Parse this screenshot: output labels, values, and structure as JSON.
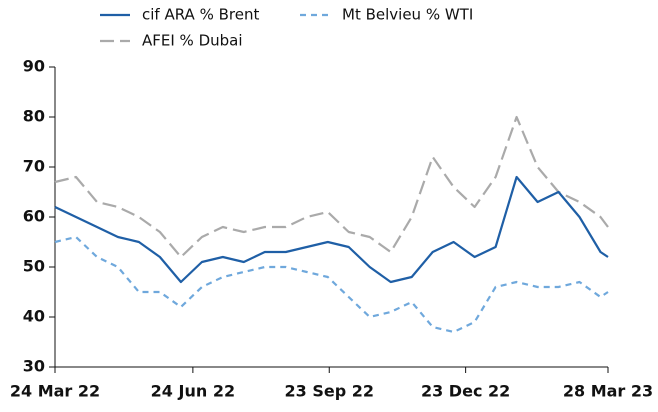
{
  "chart_data": {
    "type": "line",
    "x": [
      "2022-03-24",
      "2022-04-07",
      "2022-04-21",
      "2022-05-05",
      "2022-05-19",
      "2022-06-02",
      "2022-06-16",
      "2022-06-30",
      "2022-07-14",
      "2022-07-28",
      "2022-08-11",
      "2022-08-25",
      "2022-09-08",
      "2022-09-22",
      "2022-10-06",
      "2022-10-20",
      "2022-11-03",
      "2022-11-17",
      "2022-12-01",
      "2022-12-15",
      "2022-12-29",
      "2023-01-12",
      "2023-01-26",
      "2023-02-09",
      "2023-02-23",
      "2023-03-09",
      "2023-03-23",
      "2023-03-28"
    ],
    "series": [
      {
        "name": "cif ARA % Brent",
        "color": "#1f5fa6",
        "linestyle": "solid",
        "values": [
          62,
          60,
          58,
          56,
          55,
          52,
          47,
          51,
          52,
          51,
          53,
          53,
          54,
          55,
          54,
          50,
          47,
          48,
          53,
          55,
          52,
          54,
          68,
          63,
          65,
          60,
          53,
          52
        ]
      },
      {
        "name": "Mt Belvieu % WTI",
        "color": "#6fa8dc",
        "linestyle": "dashed",
        "values": [
          55,
          56,
          52,
          50,
          45,
          45,
          42,
          46,
          48,
          49,
          50,
          50,
          49,
          48,
          44,
          40,
          41,
          43,
          38,
          37,
          39,
          46,
          47,
          46,
          46,
          47,
          44,
          45
        ]
      },
      {
        "name": "AFEI % Dubai",
        "color": "#aaaaaa",
        "linestyle": "longdash",
        "values": [
          67,
          68,
          63,
          62,
          60,
          57,
          52,
          56,
          58,
          57,
          58,
          58,
          60,
          61,
          57,
          56,
          53,
          60,
          72,
          66,
          62,
          68,
          80,
          70,
          65,
          63,
          60,
          58
        ]
      }
    ],
    "xlim": [
      "2022-03-24",
      "2023-03-28"
    ],
    "xticks": [
      {
        "value": "2022-03-24",
        "label": "24 Mar 22"
      },
      {
        "value": "2022-06-24",
        "label": "24 Jun 22"
      },
      {
        "value": "2022-09-23",
        "label": "23 Sep 22"
      },
      {
        "value": "2022-12-23",
        "label": "23 Dec 22"
      },
      {
        "value": "2023-03-28",
        "label": "28 Mar 23"
      }
    ],
    "ylim": [
      30,
      90
    ],
    "yticks": [
      30,
      40,
      50,
      60,
      70,
      80,
      90
    ],
    "grid": false
  }
}
